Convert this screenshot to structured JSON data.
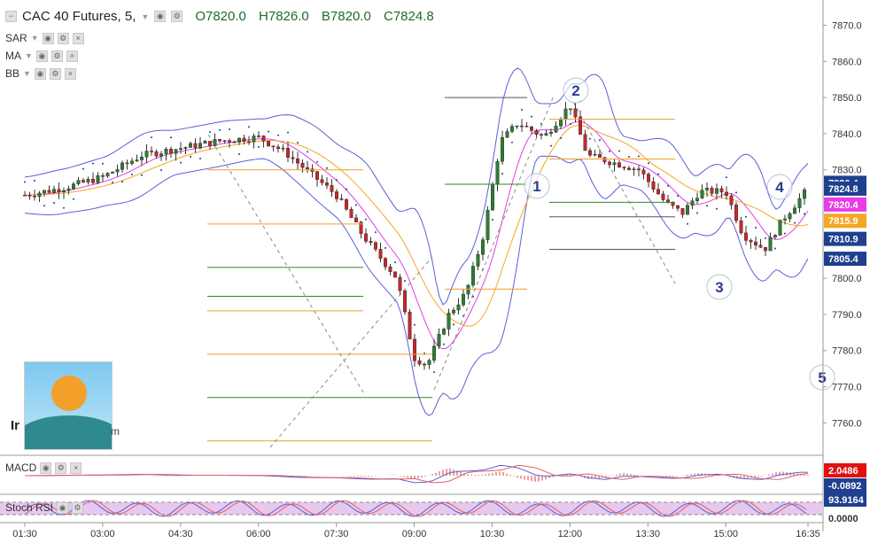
{
  "header": {
    "symbol": "CAC 40 Futures, 5,",
    "open": "O7820.0",
    "high": "H7826.0",
    "low": "B7820.0",
    "close": "C7824.8"
  },
  "indicators": [
    {
      "label": "SAR"
    },
    {
      "label": "MA"
    },
    {
      "label": "BB"
    }
  ],
  "sub_panels": {
    "macd_label": "MACD",
    "stoch_label": "Stoch RSI"
  },
  "logo": {
    "text_left": "Ir",
    "text_right": "m"
  },
  "price_badges": [
    {
      "value": "7826.4",
      "color": "#1f3f8f"
    },
    {
      "value": "7824.8",
      "color": "#1f3f8f"
    },
    {
      "value": "7820.4",
      "color": "#e83ce8"
    },
    {
      "value": "7815.9",
      "color": "#f5a623"
    },
    {
      "value": "7810.9",
      "color": "#1f3f8f"
    },
    {
      "value": "7805.4",
      "color": "#1f3f8f"
    }
  ],
  "macd_badges": [
    {
      "value": "2.0486",
      "color": "#e01010"
    },
    {
      "value": "-0.0892",
      "color": "#1f3f8f"
    }
  ],
  "stoch_badges": [
    {
      "value": "93.9164",
      "color": "#1f3f8f"
    },
    {
      "value": "0.0000",
      "color": "none"
    }
  ],
  "wave_labels": [
    "1",
    "2",
    "3",
    "4",
    "5"
  ],
  "chart_data": {
    "type": "candlestick",
    "title": "CAC 40 Futures, 5",
    "y_axis": {
      "ticks": [
        7760,
        7770,
        7780,
        7790,
        7800,
        7810,
        7820,
        7830,
        7840,
        7850,
        7860,
        7870
      ],
      "range": [
        7752,
        7876
      ]
    },
    "x_axis": {
      "ticks": [
        "01:30",
        "03:00",
        "04:30",
        "06:00",
        "07:30",
        "09:00",
        "10:30",
        "12:00",
        "13:30",
        "15:00",
        "16:35"
      ]
    },
    "close_path": [
      [
        "01:30",
        7823
      ],
      [
        "02:15",
        7825
      ],
      [
        "03:00",
        7828
      ],
      [
        "03:45",
        7834
      ],
      [
        "04:30",
        7836
      ],
      [
        "05:15",
        7838
      ],
      [
        "06:00",
        7839
      ],
      [
        "06:30",
        7835
      ],
      [
        "07:00",
        7829
      ],
      [
        "07:30",
        7823
      ],
      [
        "08:00",
        7812
      ],
      [
        "08:40",
        7800
      ],
      [
        "09:00",
        7778
      ],
      [
        "09:15",
        7776
      ],
      [
        "09:40",
        7790
      ],
      [
        "10:00",
        7796
      ],
      [
        "10:20",
        7812
      ],
      [
        "10:40",
        7838
      ],
      [
        "11:00",
        7843
      ],
      [
        "11:30",
        7839
      ],
      [
        "12:00",
        7848
      ],
      [
        "12:20",
        7834
      ],
      [
        "12:50",
        7832
      ],
      [
        "13:20",
        7830
      ],
      [
        "13:50",
        7821
      ],
      [
        "14:10",
        7818
      ],
      [
        "14:30",
        7824
      ],
      [
        "15:00",
        7824
      ],
      [
        "15:20",
        7812
      ],
      [
        "15:45",
        7808
      ],
      [
        "16:05",
        7816
      ],
      [
        "16:35",
        7824.8
      ]
    ],
    "horizontal_levels": [
      7850,
      7844,
      7833,
      7830,
      7826,
      7821,
      7817,
      7815,
      7808,
      7803,
      7797,
      7795,
      7791,
      7779,
      7767,
      7755
    ],
    "last_price": 7824.8,
    "grid": false
  }
}
